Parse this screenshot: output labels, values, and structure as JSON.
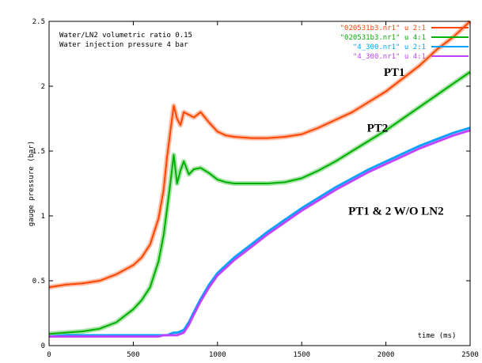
{
  "chart_data": {
    "type": "line",
    "annotations": [
      "Water/LN2 volumetric ratio 0.15",
      "Water injection pressure 4 bar"
    ],
    "xlabel": "time (ms)",
    "ylabel": "gauge pressure (bar)",
    "xlim": [
      0,
      2500
    ],
    "ylim": [
      0,
      2.5
    ],
    "x_ticks": [
      "0",
      "500",
      "1000",
      "1500",
      "2000",
      "2500"
    ],
    "y_ticks": [
      "0",
      "0.5",
      "1",
      "1.5",
      "2",
      "2.5"
    ],
    "grid": false,
    "legend_position": "top-right",
    "curve_labels": [
      {
        "text": "PT1",
        "x": 2050,
        "y": 2.08
      },
      {
        "text": "PT2",
        "x": 1950,
        "y": 1.65
      },
      {
        "text": "PT1 & 2 W/O LN2",
        "x": 2060,
        "y": 1.01
      }
    ],
    "x": [
      0,
      100,
      200,
      300,
      400,
      500,
      550,
      600,
      650,
      680,
      700,
      720,
      740,
      760,
      780,
      800,
      830,
      860,
      900,
      950,
      1000,
      1050,
      1100,
      1200,
      1300,
      1400,
      1500,
      1600,
      1700,
      1800,
      1900,
      2000,
      2100,
      2200,
      2300,
      2400,
      2500
    ],
    "series": [
      {
        "name": "\"020531b3.nr1\" u 2:1",
        "color": "#ff4500",
        "values": [
          0.45,
          0.47,
          0.48,
          0.5,
          0.55,
          0.62,
          0.68,
          0.78,
          0.98,
          1.2,
          1.45,
          1.65,
          1.85,
          1.75,
          1.7,
          1.8,
          1.78,
          1.76,
          1.8,
          1.72,
          1.65,
          1.62,
          1.61,
          1.6,
          1.6,
          1.61,
          1.63,
          1.68,
          1.74,
          1.8,
          1.88,
          1.96,
          2.06,
          2.16,
          2.28,
          2.38,
          2.5
        ]
      },
      {
        "name": "\"020531b3.nr1\" u 4:1",
        "color": "#00b000",
        "values": [
          0.09,
          0.1,
          0.11,
          0.13,
          0.18,
          0.28,
          0.35,
          0.45,
          0.65,
          0.85,
          1.05,
          1.25,
          1.47,
          1.25,
          1.35,
          1.42,
          1.32,
          1.36,
          1.37,
          1.33,
          1.28,
          1.26,
          1.25,
          1.25,
          1.25,
          1.26,
          1.29,
          1.35,
          1.42,
          1.5,
          1.58,
          1.66,
          1.75,
          1.84,
          1.93,
          2.02,
          2.11
        ]
      },
      {
        "name": "\"4_300.nr1\" u 2:1",
        "color": "#00a0ff",
        "values": [
          0.07,
          0.08,
          0.08,
          0.08,
          0.08,
          0.08,
          0.08,
          0.08,
          0.08,
          0.08,
          0.08,
          0.09,
          0.1,
          0.1,
          0.11,
          0.12,
          0.18,
          0.26,
          0.36,
          0.47,
          0.56,
          0.62,
          0.68,
          0.78,
          0.88,
          0.97,
          1.06,
          1.14,
          1.22,
          1.29,
          1.36,
          1.42,
          1.48,
          1.54,
          1.59,
          1.64,
          1.68
        ]
      },
      {
        "name": "\"4_300.nr1\" u 4:1",
        "color": "#c040ff",
        "values": [
          0.07,
          0.07,
          0.07,
          0.07,
          0.07,
          0.07,
          0.07,
          0.07,
          0.07,
          0.08,
          0.08,
          0.08,
          0.08,
          0.08,
          0.09,
          0.1,
          0.16,
          0.24,
          0.34,
          0.45,
          0.54,
          0.6,
          0.66,
          0.76,
          0.86,
          0.95,
          1.04,
          1.12,
          1.2,
          1.27,
          1.34,
          1.4,
          1.46,
          1.52,
          1.57,
          1.62,
          1.66
        ]
      }
    ]
  }
}
